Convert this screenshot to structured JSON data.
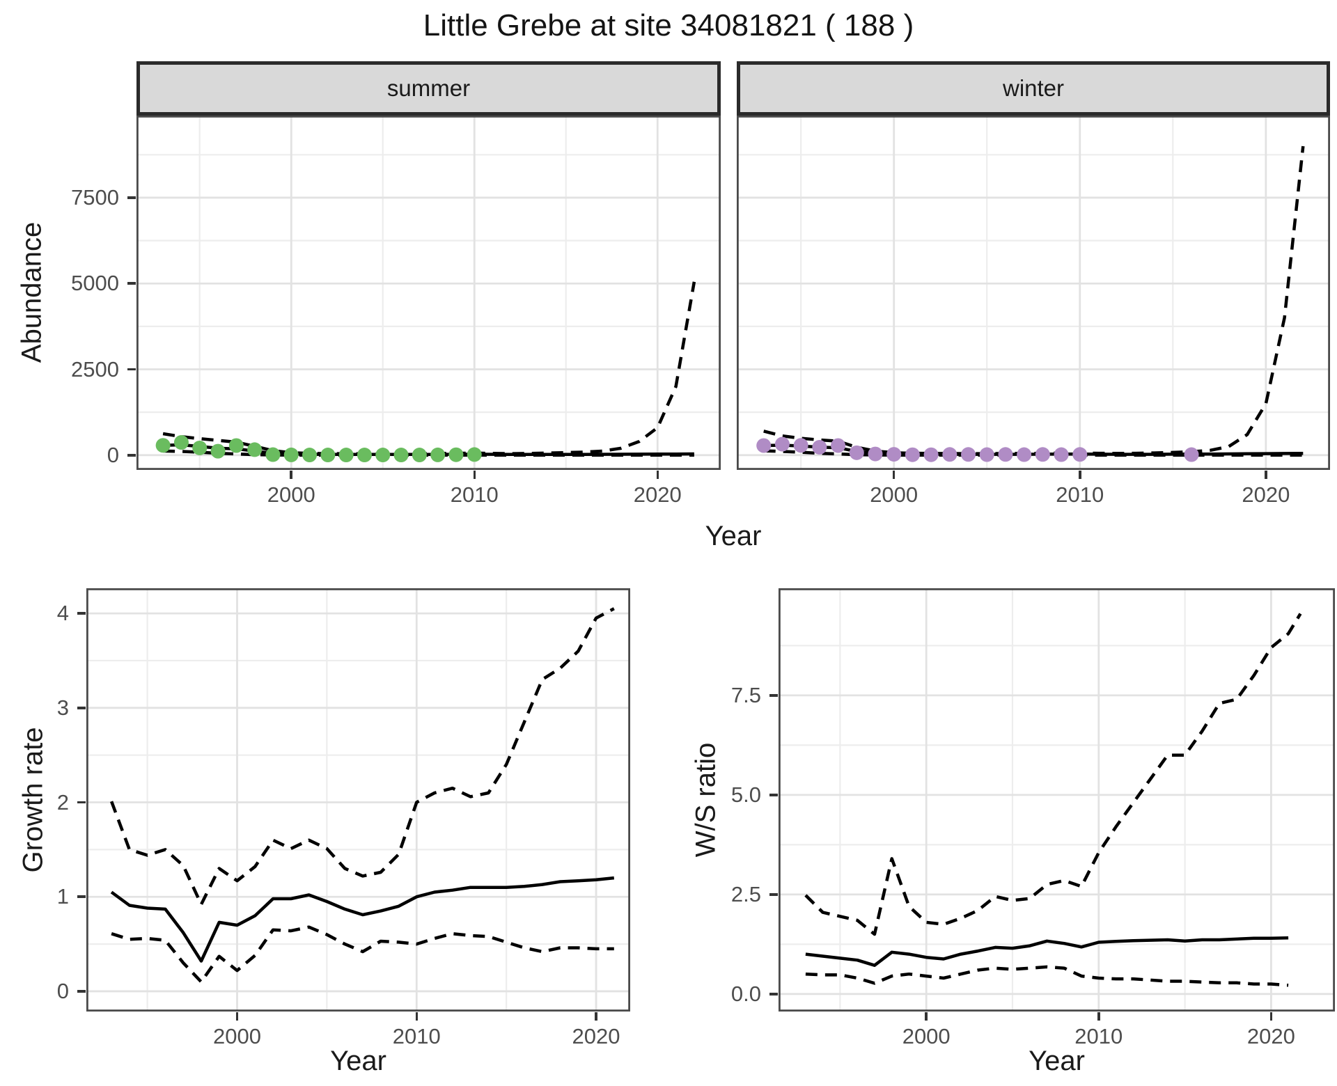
{
  "title": "Little Grebe at site 34081821 ( 188 )",
  "facets": {
    "summer": "summer",
    "winter": "winter"
  },
  "axes": {
    "abundance": "Abundance",
    "year": "Year",
    "growth": "Growth rate",
    "ws": "W/S ratio"
  },
  "colors": {
    "summer_point": "#6abc5f",
    "winter_point": "#b08cc5",
    "line": "#000000",
    "grid_major": "#e2e2e2",
    "grid_minor": "#ededed",
    "panel_border": "#4a4a4a",
    "strip_bg": "#d9d9d9",
    "strip_border": "#2b2b2b",
    "tick_mark": "#333333",
    "tick_label": "#4d4d4d"
  },
  "chart_data": [
    {
      "id": "summer",
      "type": "line",
      "facet_label": "summer",
      "xlabel": "Year",
      "ylabel": "Abundance",
      "xlim": [
        1991.55,
        2023.45
      ],
      "ylim": [
        -430,
        9892
      ],
      "x_ticks": [
        2000,
        2010,
        2020
      ],
      "x_tick_labels": [
        "2000",
        "2010",
        "2020"
      ],
      "y_ticks": [
        0,
        2500,
        5000,
        7500
      ],
      "y_tick_labels": [
        "0",
        "2500",
        "5000",
        "7500"
      ],
      "x_minor": [
        1995,
        2005,
        2015
      ],
      "y_minor": [
        1250,
        3750,
        6250,
        8750
      ],
      "show_y_axis": true,
      "grid": true,
      "years": [
        1993,
        1994,
        1995,
        1996,
        1997,
        1998,
        1999,
        2000,
        2001,
        2002,
        2003,
        2004,
        2005,
        2006,
        2007,
        2008,
        2009,
        2010,
        2011,
        2012,
        2013,
        2014,
        2015,
        2016,
        2017,
        2018,
        2019,
        2020,
        2021,
        2022
      ],
      "series": [
        {
          "name": "upper_ci",
          "style": "dashed",
          "values": [
            625,
            540,
            480,
            430,
            380,
            260,
            130,
            70,
            50,
            45,
            42,
            40,
            40,
            42,
            45,
            50,
            55,
            60,
            50,
            45,
            50,
            60,
            75,
            90,
            120,
            200,
            400,
            800,
            2000,
            5050
          ]
        },
        {
          "name": "fit",
          "style": "solid",
          "values": [
            285,
            300,
            255,
            200,
            185,
            120,
            50,
            30,
            25,
            22,
            20,
            20,
            20,
            20,
            20,
            22,
            25,
            28,
            25,
            22,
            20,
            20,
            20,
            22,
            24,
            26,
            28,
            30,
            33,
            36
          ]
        },
        {
          "name": "lower_ci",
          "style": "dashed",
          "values": [
            120,
            110,
            85,
            55,
            35,
            15,
            4,
            2,
            1,
            1,
            1,
            1,
            1,
            1,
            1,
            1,
            1,
            2,
            1,
            1,
            1,
            1,
            1,
            1,
            1,
            1,
            1,
            1,
            1,
            1
          ]
        }
      ],
      "points": {
        "name": "observed-summer",
        "color": "#6abc5f",
        "x": [
          1993,
          1994,
          1995,
          1996,
          1997,
          1998,
          1999,
          2000,
          2001,
          2002,
          2003,
          2004,
          2005,
          2006,
          2007,
          2008,
          2009,
          2010
        ],
        "y": [
          285,
          370,
          210,
          115,
          280,
          160,
          15,
          8,
          5,
          5,
          5,
          5,
          5,
          5,
          5,
          8,
          12,
          18
        ]
      }
    },
    {
      "id": "winter",
      "type": "line",
      "facet_label": "winter",
      "xlabel": "Year",
      "ylabel": "Abundance",
      "xlim": [
        1991.55,
        2023.45
      ],
      "ylim": [
        -430,
        9892
      ],
      "x_ticks": [
        2000,
        2010,
        2020
      ],
      "x_tick_labels": [
        "2000",
        "2010",
        "2020"
      ],
      "y_ticks": [
        0,
        2500,
        5000,
        7500
      ],
      "y_tick_labels": [
        "0",
        "2500",
        "5000",
        "7500"
      ],
      "x_minor": [
        1995,
        2005,
        2015
      ],
      "y_minor": [
        1250,
        3750,
        6250,
        8750
      ],
      "show_y_axis": false,
      "grid": true,
      "years": [
        1993,
        1994,
        1995,
        1996,
        1997,
        1998,
        1999,
        2000,
        2001,
        2002,
        2003,
        2004,
        2005,
        2006,
        2007,
        2008,
        2009,
        2010,
        2011,
        2012,
        2013,
        2014,
        2015,
        2016,
        2017,
        2018,
        2019,
        2020,
        2021,
        2022
      ],
      "series": [
        {
          "name": "upper_ci",
          "style": "dashed",
          "values": [
            700,
            560,
            490,
            445,
            405,
            230,
            120,
            70,
            55,
            50,
            48,
            45,
            45,
            48,
            50,
            55,
            60,
            65,
            55,
            50,
            55,
            65,
            80,
            100,
            140,
            250,
            600,
            1500,
            4000,
            9000
          ]
        },
        {
          "name": "fit",
          "style": "solid",
          "values": [
            280,
            290,
            265,
            235,
            215,
            110,
            55,
            35,
            30,
            28,
            25,
            25,
            25,
            25,
            25,
            28,
            30,
            32,
            28,
            25,
            25,
            25,
            28,
            30,
            33,
            36,
            40,
            44,
            48,
            52
          ]
        },
        {
          "name": "lower_ci",
          "style": "dashed",
          "values": [
            125,
            110,
            85,
            55,
            35,
            12,
            4,
            2,
            1,
            1,
            1,
            1,
            1,
            1,
            1,
            1,
            1,
            2,
            1,
            1,
            1,
            1,
            1,
            1,
            1,
            1,
            1,
            1,
            1,
            1
          ]
        }
      ],
      "points": {
        "name": "observed-winter",
        "color": "#b08cc5",
        "x": [
          1993,
          1994,
          1995,
          1996,
          1997,
          1998,
          1999,
          2000,
          2001,
          2002,
          2003,
          2004,
          2005,
          2006,
          2007,
          2008,
          2009,
          2010,
          2016
        ],
        "y": [
          280,
          320,
          285,
          230,
          280,
          70,
          35,
          25,
          12,
          12,
          20,
          20,
          15,
          20,
          15,
          20,
          15,
          20,
          15
        ]
      }
    },
    {
      "id": "growth",
      "type": "line",
      "xlabel": "Year",
      "ylabel": "Growth rate",
      "xlim": [
        1991.6,
        2021.9
      ],
      "ylim": [
        -0.214,
        4.266
      ],
      "x_ticks": [
        2000,
        2010,
        2020
      ],
      "x_tick_labels": [
        "2000",
        "2010",
        "2020"
      ],
      "y_ticks": [
        0,
        1,
        2,
        3,
        4
      ],
      "y_tick_labels": [
        "0",
        "1",
        "2",
        "3",
        "4"
      ],
      "x_minor": [
        1995,
        2005,
        2015
      ],
      "y_minor": [
        0.5,
        1.5,
        2.5,
        3.5
      ],
      "show_y_axis": true,
      "grid": true,
      "years": [
        1993,
        1994,
        1995,
        1996,
        1997,
        1998,
        1999,
        2000,
        2001,
        2002,
        2003,
        2004,
        2005,
        2006,
        2007,
        2008,
        2009,
        2010,
        2011,
        2012,
        2013,
        2014,
        2015,
        2016,
        2017,
        2018,
        2019,
        2020,
        2021
      ],
      "series": [
        {
          "name": "upper_ci",
          "style": "dashed",
          "values": [
            2.01,
            1.5,
            1.44,
            1.5,
            1.33,
            0.92,
            1.3,
            1.17,
            1.32,
            1.6,
            1.51,
            1.6,
            1.51,
            1.3,
            1.22,
            1.26,
            1.45,
            2.0,
            2.1,
            2.15,
            2.06,
            2.1,
            2.4,
            2.85,
            3.3,
            3.42,
            3.6,
            3.95,
            4.05
          ]
        },
        {
          "name": "fit",
          "style": "solid",
          "values": [
            1.05,
            0.91,
            0.88,
            0.87,
            0.62,
            0.32,
            0.73,
            0.7,
            0.8,
            0.98,
            0.98,
            1.02,
            0.95,
            0.87,
            0.81,
            0.85,
            0.9,
            1.0,
            1.05,
            1.07,
            1.1,
            1.1,
            1.1,
            1.11,
            1.13,
            1.16,
            1.17,
            1.18,
            1.2
          ]
        },
        {
          "name": "lower_ci",
          "style": "dashed",
          "values": [
            0.61,
            0.55,
            0.56,
            0.54,
            0.3,
            0.1,
            0.37,
            0.22,
            0.38,
            0.65,
            0.64,
            0.68,
            0.6,
            0.5,
            0.42,
            0.53,
            0.52,
            0.5,
            0.56,
            0.61,
            0.59,
            0.58,
            0.52,
            0.46,
            0.42,
            0.46,
            0.46,
            0.45,
            0.45
          ]
        }
      ]
    },
    {
      "id": "ws",
      "type": "line",
      "xlabel": "Year",
      "ylabel": "W/S ratio",
      "xlim": [
        1991.43,
        2023.7
      ],
      "ylim": [
        -0.44,
        10.19
      ],
      "x_ticks": [
        2000,
        2010,
        2020
      ],
      "x_tick_labels": [
        "2000",
        "2010",
        "2020"
      ],
      "y_ticks": [
        0,
        2.5,
        5,
        7.5
      ],
      "y_tick_labels": [
        "0.0",
        "2.5",
        "5.0",
        "7.5"
      ],
      "x_minor": [
        1995,
        2005,
        2015
      ],
      "y_minor": [
        1.25,
        3.75,
        6.25,
        8.75
      ],
      "show_y_axis": true,
      "grid": true,
      "years": [
        1993,
        1994,
        1995,
        1996,
        1997,
        1998,
        1999,
        2000,
        2001,
        2002,
        2003,
        2004,
        2005,
        2006,
        2007,
        2008,
        2009,
        2010,
        2011,
        2012,
        2013,
        2014,
        2015,
        2016,
        2017,
        2018,
        2019,
        2020,
        2021
      ],
      "series": [
        {
          "name": "upper_ci",
          "style": "dashed",
          "x": [
            1993,
            1994,
            1995,
            1996,
            1997,
            1998,
            1999,
            2000,
            2001,
            2002,
            2003,
            2004,
            2005,
            2006,
            2007,
            2008,
            2009,
            2010,
            2011,
            2012,
            2013,
            2014,
            2015,
            2016,
            2017,
            2018,
            2019,
            2020,
            2021,
            2021.7
          ],
          "values": [
            2.48,
            2.05,
            1.95,
            1.85,
            1.5,
            3.4,
            2.2,
            1.8,
            1.75,
            1.9,
            2.1,
            2.45,
            2.35,
            2.4,
            2.75,
            2.85,
            2.7,
            3.55,
            4.2,
            4.8,
            5.4,
            6.0,
            6.0,
            6.6,
            7.3,
            7.4,
            8.0,
            8.7,
            9.05,
            9.55
          ]
        },
        {
          "name": "fit",
          "style": "solid",
          "values": [
            1.0,
            0.95,
            0.9,
            0.85,
            0.72,
            1.05,
            1.0,
            0.92,
            0.88,
            1.0,
            1.08,
            1.17,
            1.15,
            1.21,
            1.33,
            1.27,
            1.18,
            1.3,
            1.32,
            1.34,
            1.35,
            1.36,
            1.33,
            1.36,
            1.36,
            1.38,
            1.4,
            1.4,
            1.41
          ]
        },
        {
          "name": "lower_ci",
          "style": "dashed",
          "values": [
            0.5,
            0.48,
            0.48,
            0.4,
            0.27,
            0.45,
            0.5,
            0.45,
            0.4,
            0.5,
            0.6,
            0.65,
            0.62,
            0.65,
            0.68,
            0.65,
            0.45,
            0.4,
            0.38,
            0.38,
            0.35,
            0.32,
            0.32,
            0.3,
            0.28,
            0.28,
            0.25,
            0.25,
            0.22
          ]
        }
      ]
    }
  ]
}
